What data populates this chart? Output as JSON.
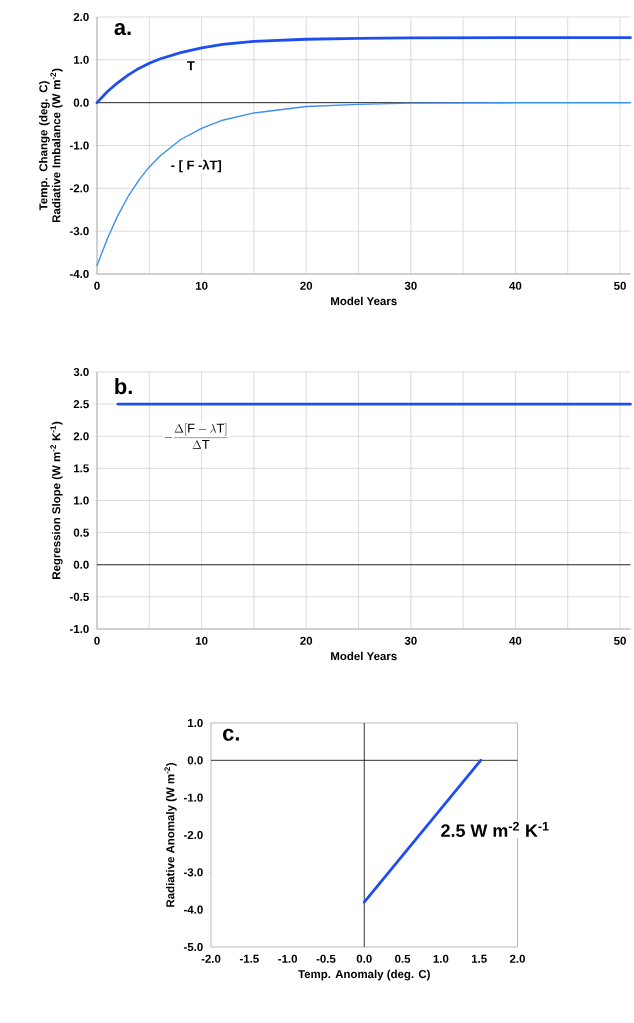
{
  "chart_data": [
    {
      "type": "line",
      "title": "a.",
      "xlabel": "Model Years",
      "ylabel": "Temp. Change (deg. C) Radiative Imbalance (W m$^{-2}$)",
      "xlim": [
        0,
        51
      ],
      "ylim": [
        -4,
        2
      ],
      "grid": true,
      "xticks": [
        0,
        {
          "value": 5,
          "label": null
        },
        10,
        {
          "value": 15,
          "label": null
        },
        20,
        {
          "value": 25,
          "label": null
        },
        30,
        {
          "value": 35,
          "label": null
        },
        40,
        {
          "value": 45,
          "label": null
        },
        50
      ],
      "yticks": [
        {
          "value": -4,
          "label": "-4.0"
        },
        {
          "value": -3,
          "label": "-3.0"
        },
        {
          "value": -2,
          "label": "-2.0"
        },
        {
          "value": -1,
          "label": "-1.0"
        },
        {
          "value": 0,
          "label": "0.0"
        },
        {
          "value": 1,
          "label": "1.0"
        },
        {
          "value": 2,
          "label": "2.0"
        }
      ],
      "x": [
        0,
        1,
        2,
        3,
        4,
        5,
        6,
        8,
        10,
        12,
        15,
        20,
        25,
        30,
        40,
        51
      ],
      "series": [
        {
          "color": "#1f4ef0",
          "values": [
            0,
            0.26,
            0.47,
            0.65,
            0.8,
            0.92,
            1.02,
            1.17,
            1.28,
            1.36,
            1.43,
            1.48,
            1.5,
            1.51,
            1.52,
            1.52
          ]
        },
        {
          "color": "#3a8ef5",
          "values": [
            -3.8,
            -3.17,
            -2.63,
            -2.18,
            -1.81,
            -1.5,
            -1.25,
            -0.86,
            -0.6,
            -0.41,
            -0.24,
            -0.09,
            -0.04,
            -0.01,
            0,
            0
          ]
        }
      ],
      "annotations": [
        "T",
        "- [ F -λT]"
      ],
      "ref_lines": [
        {
          "axis": "y",
          "value": 0,
          "color": "#000000"
        }
      ]
    },
    {
      "type": "line",
      "title": "b.",
      "xlabel": "Model Years",
      "ylabel": "Regression Slope (W m$^{-2}$ K$^{-1}$)",
      "xlim": [
        0,
        51
      ],
      "ylim": [
        -1,
        3
      ],
      "grid": true,
      "xticks": [
        0,
        {
          "value": 5,
          "label": null
        },
        10,
        {
          "value": 15,
          "label": null
        },
        20,
        {
          "value": 25,
          "label": null
        },
        30,
        {
          "value": 35,
          "label": null
        },
        40,
        {
          "value": 45,
          "label": null
        },
        50
      ],
      "yticks": [
        {
          "value": -1,
          "label": "-1.0"
        },
        {
          "value": -0.5,
          "label": "-0.5"
        },
        {
          "value": 0,
          "label": "0.0"
        },
        {
          "value": 0.5,
          "label": "0.5"
        },
        {
          "value": 1,
          "label": "1.0"
        },
        {
          "value": 1.5,
          "label": "1.5"
        },
        {
          "value": 2,
          "label": "2.0"
        },
        {
          "value": 2.5,
          "label": "2.5"
        },
        {
          "value": 3,
          "label": "3.0"
        }
      ],
      "x": [
        2,
        51
      ],
      "series": [
        {
          "color": "#1f4ef0",
          "values": [
            2.5,
            2.5
          ]
        }
      ],
      "annotations": [
        "-\\frac{\\Delta[\\mathrm{F}-\\lambda\\mathrm{T}]}{\\Delta\\mathrm{T}}"
      ],
      "ref_lines": [
        {
          "axis": "y",
          "value": 0,
          "color": "#000000"
        }
      ]
    },
    {
      "type": "line",
      "title": "c.",
      "xlabel": "Temp. Anomaly (deg. C)",
      "ylabel": "Radiative Anomaly (W m$^{-2}$)",
      "xlim": [
        -2,
        2
      ],
      "ylim": [
        -5,
        1
      ],
      "grid": false,
      "xticks": [
        {
          "value": -2,
          "label": "-2.0"
        },
        {
          "value": -1.5,
          "label": "-1.5"
        },
        {
          "value": -1,
          "label": "-1.0"
        },
        {
          "value": -0.5,
          "label": "-0.5"
        },
        {
          "value": 0,
          "label": "0.0"
        },
        {
          "value": 0.5,
          "label": "0.5"
        },
        {
          "value": 1,
          "label": "1.0"
        },
        {
          "value": 1.5,
          "label": "1.5"
        },
        {
          "value": 2,
          "label": "2.0"
        }
      ],
      "yticks": [
        {
          "value": -5,
          "label": "-5.0"
        },
        {
          "value": -4,
          "label": "-4.0"
        },
        {
          "value": -3,
          "label": "-3.0"
        },
        {
          "value": -2,
          "label": "-2.0"
        },
        {
          "value": -1,
          "label": "-1.0"
        },
        {
          "value": 0,
          "label": "0.0"
        },
        {
          "value": 1,
          "label": "1.0"
        }
      ],
      "x": [
        0,
        1.52
      ],
      "series": [
        {
          "color": "#1f4ef0",
          "values": [
            -3.8,
            0
          ]
        }
      ],
      "annotations": [
        "2.5 W m$^{-2}$ K$^{-1}$"
      ],
      "ref_lines": [
        {
          "axis": "y",
          "value": 0,
          "color": "#000000"
        },
        {
          "axis": "x",
          "value": 0,
          "color": "#000000"
        }
      ]
    }
  ]
}
